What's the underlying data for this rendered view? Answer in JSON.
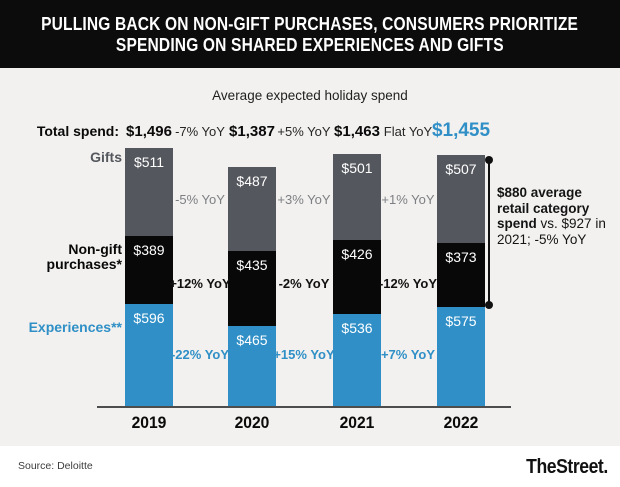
{
  "title": {
    "line1": "PULLING BACK ON NON-GIFT PURCHASES, CONSUMERS PRIORITIZE",
    "line2": "SPENDING ON SHARED EXPERIENCES AND GIFTS"
  },
  "subtitle": "Average expected holiday spend",
  "chart_data": {
    "type": "bar",
    "stacked": true,
    "categories": [
      "2019",
      "2020",
      "2021",
      "2022"
    ],
    "series": [
      {
        "name": "Gifts",
        "color": "#54575d",
        "values": [
          511,
          487,
          501,
          507
        ],
        "value_labels": [
          "$511",
          "$487",
          "$501",
          "$507"
        ],
        "yoy_between": [
          "-5% YoY",
          "+3% YoY",
          "+1% YoY"
        ],
        "yoy_color": "#7d7f83",
        "yoy_weight": "400"
      },
      {
        "name": "Non-gift purchases*",
        "color": "#080808",
        "values": [
          389,
          435,
          426,
          373
        ],
        "value_labels": [
          "$389",
          "$435",
          "$426",
          "$373"
        ],
        "yoy_between": [
          "+12% YoY",
          "-2% YoY",
          "-12% YoY"
        ],
        "yoy_color": "#111111",
        "yoy_weight": "600"
      },
      {
        "name": "Experiences**",
        "color": "#2f8fc6",
        "values": [
          596,
          465,
          536,
          575
        ],
        "value_labels": [
          "$596",
          "$465",
          "$536",
          "$575"
        ],
        "yoy_between": [
          "-22% YoY",
          "+15% YoY",
          "+7% YoY"
        ],
        "yoy_color": "#2f8fc6",
        "yoy_weight": "700"
      }
    ],
    "totals": {
      "label": "Total spend:",
      "value_labels": [
        "$1,496",
        "$1,387",
        "$1,463",
        "$1,455"
      ],
      "yoy_between": [
        "-7% YoY",
        "+5% YoY",
        "Flat YoY"
      ]
    },
    "title": "Average expected holiday spend",
    "legend_position": "left",
    "grid": false
  },
  "annotation": {
    "bold": "$880 average retail category spend",
    "regular": "vs. $927 in 2021; -5% YoY"
  },
  "footer": {
    "source": "Source: Deloitte",
    "brand": "TheStreet."
  }
}
